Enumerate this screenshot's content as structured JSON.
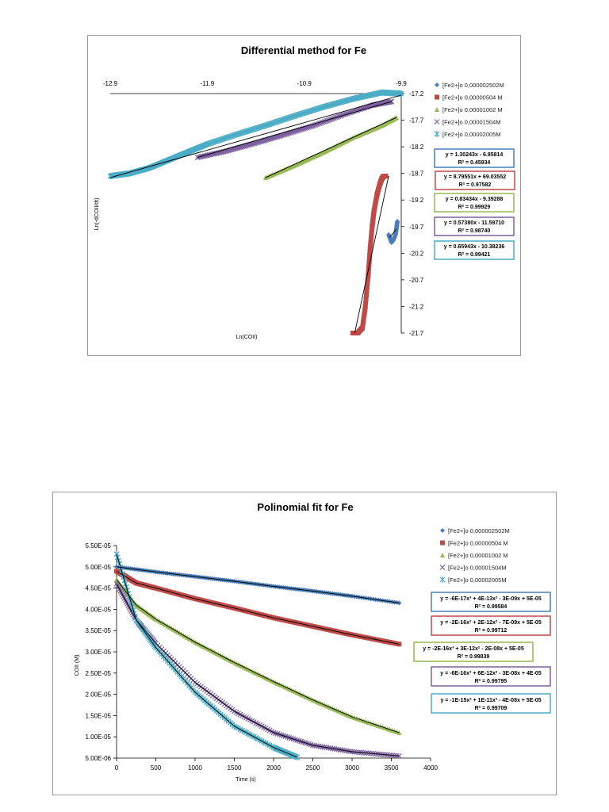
{
  "chart_data": [
    {
      "type": "scatter",
      "title": "Differential method for Fe",
      "xlabel": "Ln(COII)",
      "ylabel": "Ln(-dCOII/dt)",
      "xlim": [
        -12.9,
        -9.9
      ],
      "ylim": [
        -21.7,
        -17.2
      ],
      "xticks": [
        "-12.9",
        "-11.9",
        "-10.9",
        "-9.9"
      ],
      "yticks": [
        "-17.2",
        "-17.7",
        "-18.2",
        "-18.7",
        "-19.2",
        "-19.7",
        "-20.2",
        "-20.7",
        "-21.2",
        "-21.7"
      ],
      "legend_position": "right",
      "series": [
        {
          "name": "[Fe2+]o 0,000002502M",
          "color": "#4a7ebb",
          "marker": "diamond",
          "x": [
            -10.03,
            -10.0,
            -9.98,
            -9.96,
            -9.95,
            -9.94
          ],
          "y": [
            -19.85,
            -20.0,
            -19.95,
            -19.85,
            -19.75,
            -19.6
          ]
        },
        {
          "name": "[Fe2+]o  0,00000504 M",
          "color": "#be4b48",
          "marker": "square",
          "x": [
            -10.4,
            -10.35,
            -10.3,
            -10.27,
            -10.24,
            -10.22,
            -10.2,
            -10.18,
            -10.15,
            -10.12,
            -10.1,
            -10.08,
            -10.06
          ],
          "y": [
            -21.7,
            -21.7,
            -21.6,
            -21.2,
            -20.6,
            -20.1,
            -19.7,
            -19.4,
            -19.1,
            -18.9,
            -18.8,
            -18.75,
            -18.75
          ]
        },
        {
          "name": "[Fe2+]o 0,00001002 M",
          "color": "#98b954",
          "marker": "triangle",
          "x": [
            -11.3,
            -11.0,
            -10.7,
            -10.4,
            -10.1,
            -9.95
          ],
          "y": [
            -18.78,
            -18.55,
            -18.3,
            -18.03,
            -17.8,
            -17.65
          ]
        },
        {
          "name": "[Fe2+]o 0,00001504M",
          "color": "#7d60a0",
          "marker": "x",
          "x": [
            -12.0,
            -11.7,
            -11.4,
            -11.1,
            -10.8,
            -10.5,
            -10.2,
            -10.0
          ],
          "y": [
            -18.4,
            -18.28,
            -18.13,
            -17.97,
            -17.8,
            -17.6,
            -17.42,
            -17.35
          ]
        },
        {
          "name": "[Fe2+]o 0,00002005M",
          "color": "#4bacc6",
          "marker": "star",
          "x": [
            -12.9,
            -12.7,
            -12.5,
            -12.3,
            -12.1,
            -11.9,
            -11.6,
            -11.3,
            -11.0,
            -10.7,
            -10.4,
            -10.1,
            -9.9
          ],
          "y": [
            -18.75,
            -18.7,
            -18.6,
            -18.45,
            -18.3,
            -18.15,
            -17.97,
            -17.8,
            -17.62,
            -17.45,
            -17.3,
            -17.18,
            -17.2
          ]
        }
      ],
      "trendlines": [
        {
          "label": "y = 1.30243x - 6.85814",
          "r2": "R² = 0.45934",
          "color": "#4a7ebb",
          "x": [
            -10.02,
            -9.95
          ]
        },
        {
          "label": "y = 8.79551x + 69.03552",
          "r2": "R² = 0.97582",
          "color": "#be4b48",
          "x": [
            -10.38,
            -10.03
          ]
        },
        {
          "label": "y = 0.83434x - 9.39288",
          "r2": "R² = 0.99929",
          "color": "#98b954",
          "x": [
            -11.3,
            -9.95
          ]
        },
        {
          "label": "y = 0.57380x - 11.59710",
          "r2": "R² = 0.98740",
          "color": "#7d60a0",
          "x": [
            -12.0,
            -10.0
          ]
        },
        {
          "label": "y = 0.65943x - 10.38236",
          "r2": "R² = 0.99421",
          "color": "#4bacc6",
          "x": [
            -12.9,
            -9.9
          ]
        }
      ]
    },
    {
      "type": "scatter",
      "title": "Polinomial fit for Fe",
      "xlabel": "Time (s)",
      "ylabel": "COII (M)",
      "xlim": [
        0,
        4000
      ],
      "ylim": [
        5e-06,
        5.5e-05
      ],
      "xticks": [
        "0",
        "500",
        "1000",
        "1500",
        "2000",
        "2500",
        "3000",
        "3500",
        "4000"
      ],
      "yticks": [
        "5.00E-06",
        "1.00E-05",
        "1.50E-05",
        "2.00E-05",
        "2.50E-05",
        "3.00E-05",
        "3.50E-05",
        "4.00E-05",
        "4.50E-05",
        "5.00E-05",
        "5.50E-05"
      ],
      "legend_position": "right",
      "series": [
        {
          "name": "[Fe2+]o 0,000002502M",
          "color": "#4a7ebb",
          "marker": "diamond",
          "x": [
            0,
            500,
            1000,
            1500,
            2000,
            2500,
            3000,
            3600
          ],
          "y": [
            5e-05,
            4.88e-05,
            4.77e-05,
            4.66e-05,
            4.54e-05,
            4.43e-05,
            4.31e-05,
            4.15e-05
          ]
        },
        {
          "name": "[Fe2+]o 0,00000504 M",
          "color": "#be4b48",
          "marker": "square",
          "x": [
            0,
            250,
            500,
            1000,
            1500,
            2000,
            2500,
            3000,
            3600
          ],
          "y": [
            4.9e-05,
            4.62e-05,
            4.5e-05,
            4.25e-05,
            4.03e-05,
            3.8e-05,
            3.6e-05,
            3.4e-05,
            3.18e-05
          ]
        },
        {
          "name": "[Fe2+]o 0,00001002 M",
          "color": "#98b954",
          "marker": "triangle",
          "x": [
            0,
            250,
            500,
            1000,
            1500,
            2000,
            2500,
            3000,
            3600
          ],
          "y": [
            4.7e-05,
            4.1e-05,
            3.77e-05,
            3.23e-05,
            2.75e-05,
            2.3e-05,
            1.87e-05,
            1.47e-05,
            1.1e-05
          ]
        },
        {
          "name": "[Fe2+]o 0,00001504M",
          "color": "#7d60a0",
          "marker": "x",
          "x": [
            0,
            250,
            500,
            1000,
            1500,
            2000,
            2500,
            3000,
            3600
          ],
          "y": [
            4.6e-05,
            3.75e-05,
            3.2e-05,
            2.28e-05,
            1.6e-05,
            1.1e-05,
            8e-06,
            6.5e-06,
            5.5e-06
          ]
        },
        {
          "name": "[Fe2+]o 0,00002005M",
          "color": "#4bacc6",
          "marker": "star",
          "x": [
            0,
            250,
            500,
            1000,
            1500,
            2000,
            2300
          ],
          "y": [
            5.3e-05,
            3.75e-05,
            3.1e-05,
            2.05e-05,
            1.25e-05,
            7.5e-06,
            5.2e-06
          ]
        }
      ],
      "trendlines": [
        {
          "label": "y = -6E-17x³ + 4E-13x² - 3E-09x + 5E-05",
          "r2": "R² = 0.99584",
          "color": "#4a7ebb"
        },
        {
          "label": "y = -2E-16x³ + 2E-12x² - 7E-09x + 5E-05",
          "r2": "R² = 0.99712",
          "color": "#be4b48"
        },
        {
          "label": "y = -2E-16x³ + 3E-12x² - 2E-08x + 5E-05",
          "r2": "R² = 0.99839",
          "color": "#98b954"
        },
        {
          "label": "y = -6E-16x³ + 6E-12x² - 3E-08x + 4E-05",
          "r2": "R² = 0.99795",
          "color": "#7d60a0"
        },
        {
          "label": "y = -1E-15x³ + 1E-11x² - 4E-08x + 5E-05",
          "r2": "R² = 0.99709",
          "color": "#4bacc6"
        }
      ]
    }
  ]
}
